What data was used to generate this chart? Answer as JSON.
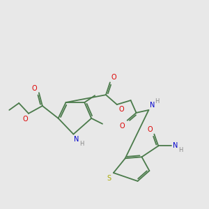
{
  "background_color": "#e8e8e8",
  "bond_color": "#4a7a4a",
  "atom_colors": {
    "O": "#dd0000",
    "N": "#0000cc",
    "S": "#aaaa00",
    "H": "#888888"
  },
  "figsize": [
    3.0,
    3.0
  ],
  "dpi": 100,
  "lw": 1.3,
  "fs": 7.0
}
